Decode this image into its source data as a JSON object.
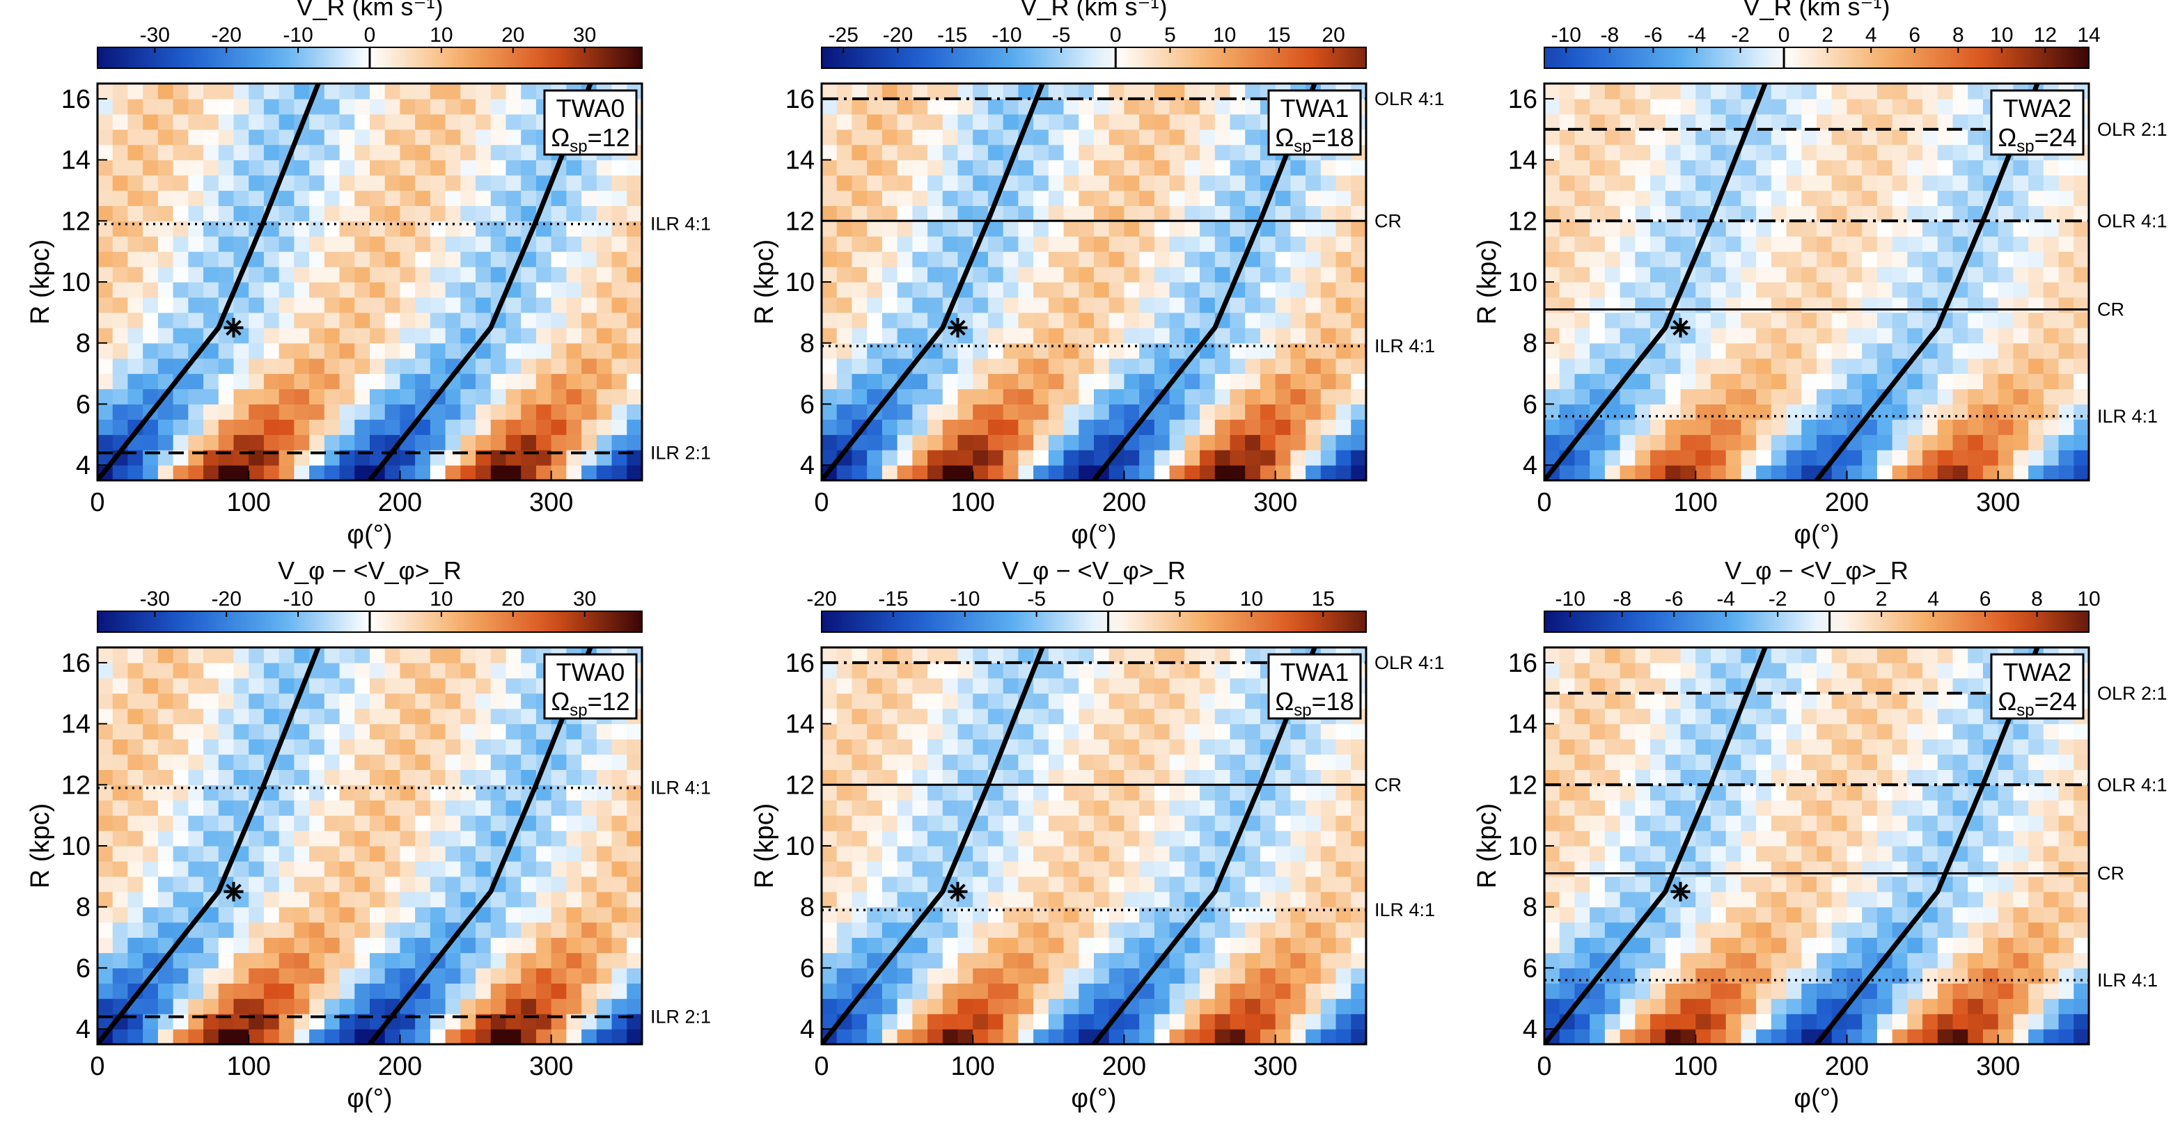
{
  "figure": {
    "colorscale": [
      "#08157a",
      "#1f5fd0",
      "#5aaef0",
      "#ffffff",
      "#f6b06a",
      "#d8521b",
      "#3a0505"
    ]
  },
  "chart_data": [
    {
      "type": "heatmap",
      "panel": "TWA0",
      "row": "VR",
      "cbar": {
        "title": "V_R (km s⁻¹)",
        "ticks": [
          -30,
          -20,
          -10,
          0,
          10,
          20,
          30
        ],
        "range": [
          -38,
          38
        ]
      },
      "box": {
        "name": "TWA0",
        "omega_label": "Ω",
        "omega_sub": "sp",
        "omega_value": "=12"
      },
      "xlabel": "φ(°)",
      "ylabel": "R (kpc)",
      "xlim": [
        0,
        360
      ],
      "ylim": [
        3.5,
        16.5
      ],
      "xticks": [
        0,
        100,
        200,
        300
      ],
      "yticks": [
        4,
        6,
        8,
        10,
        12,
        14,
        16
      ],
      "amplitude": 35,
      "resonances": [
        {
          "label": "ILR 4:1",
          "R": 11.9,
          "style": "dotted"
        },
        {
          "label": "ILR 2:1",
          "R": 4.4,
          "style": "dashed"
        }
      ],
      "star": {
        "phi": 90,
        "R": 8.5
      },
      "spiral_arm_phi_at_R": [
        {
          "R": 3.5,
          "phi": 0
        },
        {
          "R": 8.5,
          "phi": 80
        },
        {
          "R": 12,
          "phi": 110
        },
        {
          "R": 16.5,
          "phi": 146
        }
      ]
    },
    {
      "type": "heatmap",
      "panel": "TWA1",
      "row": "VR",
      "cbar": {
        "title": "V_R (km s⁻¹)",
        "ticks": [
          -25,
          -20,
          -15,
          -10,
          -5,
          0,
          5,
          10,
          15,
          20
        ],
        "range": [
          -27,
          23
        ]
      },
      "box": {
        "name": "TWA1",
        "omega_label": "Ω",
        "omega_sub": "sp",
        "omega_value": "=18"
      },
      "xlabel": "φ(°)",
      "ylabel": "R (kpc)",
      "xlim": [
        0,
        360
      ],
      "ylim": [
        3.5,
        16.5
      ],
      "xticks": [
        0,
        100,
        200,
        300
      ],
      "yticks": [
        4,
        6,
        8,
        10,
        12,
        14,
        16
      ],
      "amplitude": 25,
      "resonances": [
        {
          "label": "OLR 4:1",
          "R": 16.0,
          "style": "dashdot"
        },
        {
          "label": "CR",
          "R": 12.0,
          "style": "solid"
        },
        {
          "label": "ILR 4:1",
          "R": 7.9,
          "style": "dotted"
        }
      ],
      "star": {
        "phi": 90,
        "R": 8.5
      },
      "spiral_arm_phi_at_R": [
        {
          "R": 3.5,
          "phi": 0
        },
        {
          "R": 8.5,
          "phi": 80
        },
        {
          "R": 12,
          "phi": 110
        },
        {
          "R": 16.5,
          "phi": 146
        }
      ]
    },
    {
      "type": "heatmap",
      "panel": "TWA2",
      "row": "VR",
      "cbar": {
        "title": "V_R (km s⁻¹)",
        "ticks": [
          -10,
          -8,
          -6,
          -4,
          -2,
          0,
          2,
          4,
          6,
          8,
          10,
          12,
          14
        ],
        "range": [
          -11,
          14
        ]
      },
      "box": {
        "name": "TWA2",
        "omega_label": "Ω",
        "omega_sub": "sp",
        "omega_value": "=24"
      },
      "xlabel": "φ(°)",
      "ylabel": "R (kpc)",
      "xlim": [
        0,
        360
      ],
      "ylim": [
        3.5,
        16.5
      ],
      "xticks": [
        0,
        100,
        200,
        300
      ],
      "yticks": [
        4,
        6,
        8,
        10,
        12,
        14,
        16
      ],
      "amplitude": 10,
      "resonances": [
        {
          "label": "OLR 2:1",
          "R": 15.0,
          "style": "dashed"
        },
        {
          "label": "OLR 4:1",
          "R": 12.0,
          "style": "dashdot"
        },
        {
          "label": "CR",
          "R": 9.1,
          "style": "solid"
        },
        {
          "label": "ILR 4:1",
          "R": 5.6,
          "style": "dotted"
        }
      ],
      "star": {
        "phi": 90,
        "R": 8.5
      },
      "spiral_arm_phi_at_R": [
        {
          "R": 3.5,
          "phi": 0
        },
        {
          "R": 8.5,
          "phi": 80
        },
        {
          "R": 12,
          "phi": 110
        },
        {
          "R": 16.5,
          "phi": 146
        }
      ]
    },
    {
      "type": "heatmap",
      "panel": "TWA0",
      "row": "Vphi",
      "cbar": {
        "title": "V_φ − <V_φ>_R",
        "ticks": [
          -30,
          -20,
          -10,
          0,
          10,
          20,
          30
        ],
        "range": [
          -38,
          38
        ]
      },
      "box": {
        "name": "TWA0",
        "omega_label": "Ω",
        "omega_sub": "sp",
        "omega_value": "=12"
      },
      "xlabel": "φ(°)",
      "ylabel": "R (kpc)",
      "xlim": [
        0,
        360
      ],
      "ylim": [
        3.5,
        16.5
      ],
      "xticks": [
        0,
        100,
        200,
        300
      ],
      "yticks": [
        4,
        6,
        8,
        10,
        12,
        14,
        16
      ],
      "amplitude": 35,
      "resonances": [
        {
          "label": "ILR 4:1",
          "R": 11.9,
          "style": "dotted"
        },
        {
          "label": "ILR 2:1",
          "R": 4.4,
          "style": "dashed"
        }
      ],
      "star": {
        "phi": 90,
        "R": 8.5
      },
      "spiral_arm_phi_at_R": [
        {
          "R": 3.5,
          "phi": 0
        },
        {
          "R": 8.5,
          "phi": 80
        },
        {
          "R": 12,
          "phi": 110
        },
        {
          "R": 16.5,
          "phi": 146
        }
      ]
    },
    {
      "type": "heatmap",
      "panel": "TWA1",
      "row": "Vphi",
      "cbar": {
        "title": "V_φ − <V_φ>_R",
        "ticks": [
          -20,
          -15,
          -10,
          -5,
          0,
          5,
          10,
          15
        ],
        "range": [
          -20,
          18
        ]
      },
      "box": {
        "name": "TWA1",
        "omega_label": "Ω",
        "omega_sub": "sp",
        "omega_value": "=18"
      },
      "xlabel": "φ(°)",
      "ylabel": "R (kpc)",
      "xlim": [
        0,
        360
      ],
      "ylim": [
        3.5,
        16.5
      ],
      "xticks": [
        0,
        100,
        200,
        300
      ],
      "yticks": [
        4,
        6,
        8,
        10,
        12,
        14,
        16
      ],
      "amplitude": 16,
      "resonances": [
        {
          "label": "OLR 4:1",
          "R": 16.0,
          "style": "dashdot"
        },
        {
          "label": "CR",
          "R": 12.0,
          "style": "solid"
        },
        {
          "label": "ILR 4:1",
          "R": 7.9,
          "style": "dotted"
        }
      ],
      "star": {
        "phi": 90,
        "R": 8.5
      },
      "spiral_arm_phi_at_R": [
        {
          "R": 3.5,
          "phi": 0
        },
        {
          "R": 8.5,
          "phi": 80
        },
        {
          "R": 12,
          "phi": 110
        },
        {
          "R": 16.5,
          "phi": 146
        }
      ]
    },
    {
      "type": "heatmap",
      "panel": "TWA2",
      "row": "Vphi",
      "cbar": {
        "title": "V_φ − <V_φ>_R",
        "ticks": [
          -10,
          -8,
          -6,
          -4,
          -2,
          0,
          2,
          4,
          6,
          8,
          10
        ],
        "range": [
          -11,
          10
        ]
      },
      "box": {
        "name": "TWA2",
        "omega_label": "Ω",
        "omega_sub": "sp",
        "omega_value": "=24"
      },
      "xlabel": "φ(°)",
      "ylabel": "R (kpc)",
      "xlim": [
        0,
        360
      ],
      "ylim": [
        3.5,
        16.5
      ],
      "xticks": [
        0,
        100,
        200,
        300
      ],
      "yticks": [
        4,
        6,
        8,
        10,
        12,
        14,
        16
      ],
      "amplitude": 9,
      "resonances": [
        {
          "label": "OLR 2:1",
          "R": 15.0,
          "style": "dashed"
        },
        {
          "label": "OLR 4:1",
          "R": 12.0,
          "style": "dashdot"
        },
        {
          "label": "CR",
          "R": 9.1,
          "style": "solid"
        },
        {
          "label": "ILR 4:1",
          "R": 5.6,
          "style": "dotted"
        }
      ],
      "star": {
        "phi": 90,
        "R": 8.5
      },
      "spiral_arm_phi_at_R": [
        {
          "R": 3.5,
          "phi": 0
        },
        {
          "R": 8.5,
          "phi": 80
        },
        {
          "R": 12,
          "phi": 110
        },
        {
          "R": 16.5,
          "phi": 146
        }
      ]
    }
  ]
}
